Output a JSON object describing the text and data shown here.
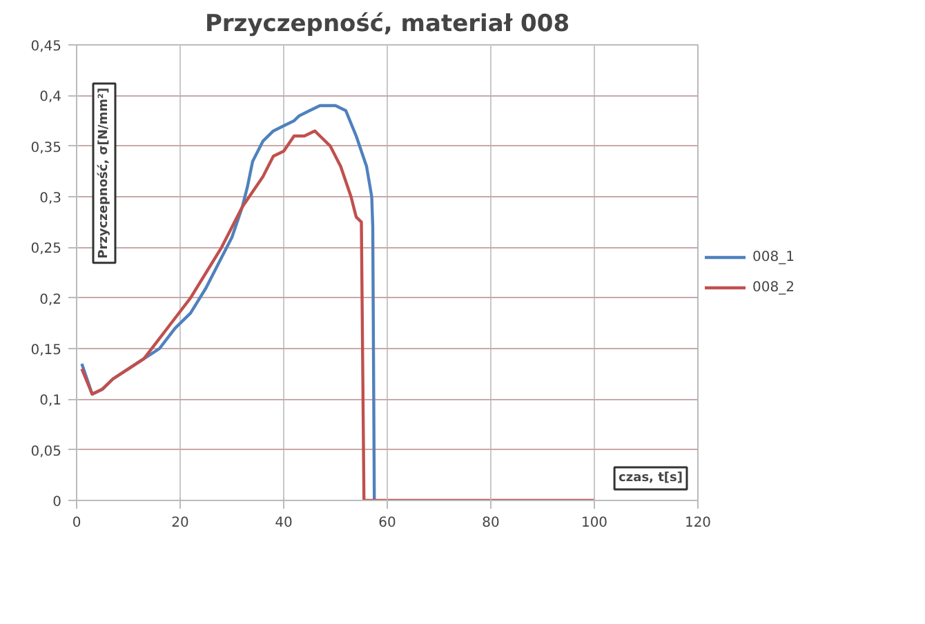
{
  "chart_data": {
    "type": "line",
    "title": "Przyczepność, materiał 008",
    "xlabel": "czas, t[s]",
    "ylabel": "Przyczepność, σ[N/mm²]",
    "xlim": [
      0,
      120
    ],
    "xticks": [
      0,
      20,
      40,
      60,
      80,
      100,
      120
    ],
    "ylim": [
      0,
      0.45
    ],
    "yticks": [
      {
        "value": 0,
        "label": "0"
      },
      {
        "value": 0.05,
        "label": "0,05"
      },
      {
        "value": 0.1,
        "label": "0,1"
      },
      {
        "value": 0.15,
        "label": "0,15"
      },
      {
        "value": 0.2,
        "label": "0,2"
      },
      {
        "value": 0.25,
        "label": "0,25"
      },
      {
        "value": 0.3,
        "label": "0,3"
      },
      {
        "value": 0.35,
        "label": "0,35"
      },
      {
        "value": 0.4,
        "label": "0,4"
      },
      {
        "value": 0.45,
        "label": "0,45"
      }
    ],
    "grid": true,
    "legend": "right",
    "marker": "none",
    "line_style": "solid",
    "series": [
      {
        "name": "008_1",
        "color": "#4f81bd",
        "x": [
          1,
          2,
          3,
          5,
          7,
          10,
          13,
          16,
          19,
          22,
          25,
          28,
          30,
          32,
          33,
          34,
          36,
          38,
          40,
          42,
          43,
          45,
          47,
          50,
          52,
          54,
          56,
          57,
          57.2,
          57.5
        ],
        "values": [
          0.135,
          0.12,
          0.105,
          0.11,
          0.12,
          0.13,
          0.14,
          0.15,
          0.17,
          0.185,
          0.21,
          0.24,
          0.26,
          0.29,
          0.31,
          0.335,
          0.355,
          0.365,
          0.37,
          0.375,
          0.38,
          0.385,
          0.39,
          0.39,
          0.385,
          0.36,
          0.33,
          0.3,
          0.27,
          0
        ]
      },
      {
        "name": "008_2",
        "color": "#c0504d",
        "x": [
          1,
          3,
          5,
          7,
          10,
          13,
          16,
          19,
          22,
          25,
          28,
          30,
          32,
          34,
          36,
          38,
          40,
          42,
          44,
          46,
          47,
          49,
          51,
          53,
          54,
          55,
          55.5,
          100
        ],
        "values": [
          0.13,
          0.105,
          0.11,
          0.12,
          0.13,
          0.14,
          0.16,
          0.18,
          0.2,
          0.225,
          0.25,
          0.27,
          0.29,
          0.305,
          0.32,
          0.34,
          0.345,
          0.36,
          0.36,
          0.365,
          0.36,
          0.35,
          0.33,
          0.3,
          0.28,
          0.275,
          0,
          0
        ]
      }
    ]
  }
}
